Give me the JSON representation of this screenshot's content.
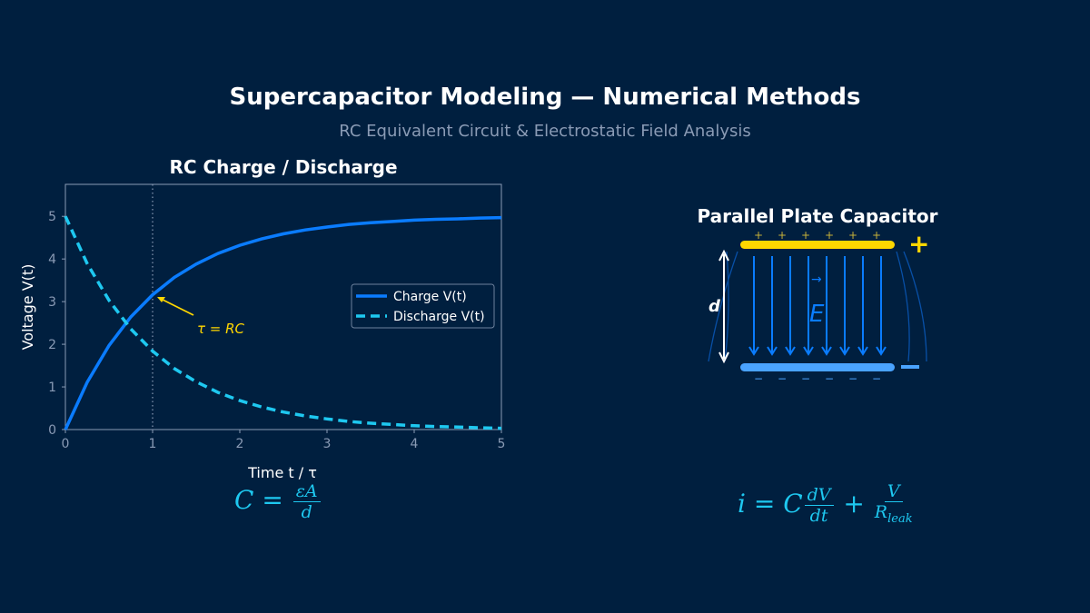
{
  "header": {
    "title": "Supercapacitor Modeling — Numerical Methods",
    "subtitle": "RC Equivalent Circuit & Electrostatic Field Analysis"
  },
  "chart_data": {
    "type": "line",
    "title": "RC Charge / Discharge",
    "xlabel": "Time  t / τ",
    "ylabel": "Voltage  V(t)",
    "xlim": [
      0,
      5
    ],
    "ylim": [
      0,
      5.75
    ],
    "xticks": [
      "0",
      "1",
      "2",
      "3",
      "4",
      "5"
    ],
    "yticks": [
      "0",
      "1",
      "2",
      "3",
      "4",
      "5"
    ],
    "grid": false,
    "legend_position": "right",
    "x": [
      0,
      0.25,
      0.5,
      0.75,
      1,
      1.25,
      1.5,
      1.75,
      2,
      2.25,
      2.5,
      2.75,
      3,
      3.25,
      3.5,
      3.75,
      4,
      4.25,
      4.5,
      4.75,
      5
    ],
    "series": [
      {
        "name": "Charge V(t)",
        "color": "#0a7cff",
        "style": "solid",
        "values": [
          0,
          1.11,
          1.97,
          2.64,
          3.16,
          3.57,
          3.88,
          4.13,
          4.32,
          4.47,
          4.59,
          4.68,
          4.75,
          4.81,
          4.85,
          4.88,
          4.91,
          4.93,
          4.94,
          4.96,
          4.97
        ]
      },
      {
        "name": "Discharge V(t)",
        "color": "#1ec8f0",
        "style": "dashed",
        "values": [
          5,
          3.89,
          3.03,
          2.36,
          1.84,
          1.43,
          1.12,
          0.87,
          0.68,
          0.53,
          0.41,
          0.32,
          0.25,
          0.19,
          0.15,
          0.12,
          0.09,
          0.07,
          0.06,
          0.04,
          0.03
        ]
      }
    ],
    "annotations": [
      {
        "text": "τ = RC",
        "x": 1,
        "y": 3.16,
        "color": "#ffd700"
      }
    ],
    "vline": {
      "x": 1,
      "style": "dotted"
    }
  },
  "capacitor": {
    "title": "Parallel Plate Capacitor",
    "plus_sign": "+",
    "minus_sign": "−",
    "small_plus": "+",
    "small_minus": "−",
    "gap_label": "d",
    "field_label": "E",
    "field_arrow": "→",
    "top_plate_color": "#ffd700",
    "bottom_plate_color": "#4aa3ff",
    "field_color": "#0a7cff"
  },
  "formulas": {
    "left": {
      "lhs": "C = ",
      "num": "εA",
      "den": "d"
    },
    "right": {
      "lhs": "i = C",
      "num1": "dV",
      "den1": "dt",
      "plus": " + ",
      "num2": "V",
      "den2": "R",
      "den2_sub": "leak"
    }
  },
  "colors": {
    "background": "#001f3f",
    "axis": "#8a9bb5"
  }
}
